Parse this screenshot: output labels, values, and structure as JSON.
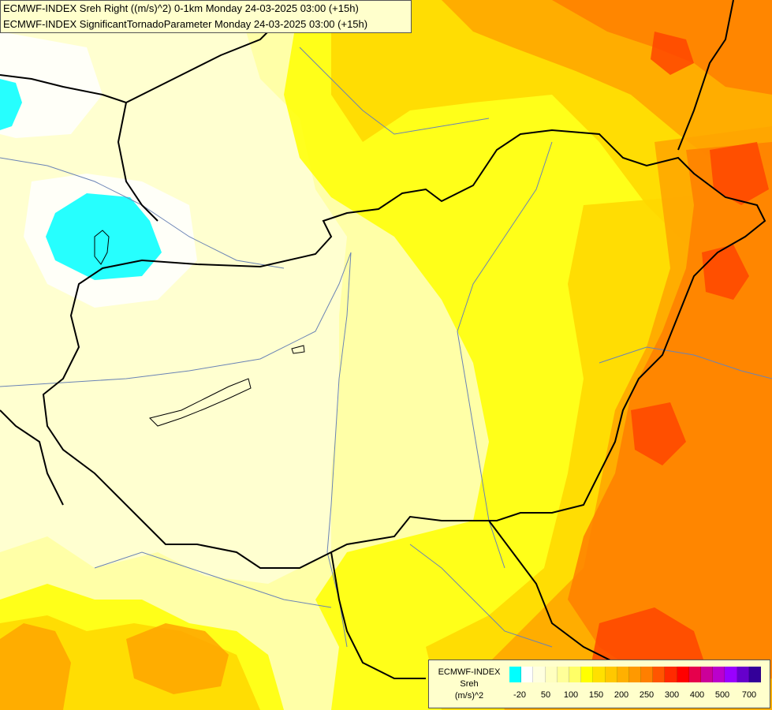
{
  "title_lines": [
    "ECMWF-INDEX Sreh Right ((m/s)^2) 0-1km Monday 24-03-2025 03:00 (+15h)",
    "ECMWF-INDEX SignificantTornadoParameter Monday 24-03-2025 03:00 (+15h)"
  ],
  "legend": {
    "caption_lines": [
      "ECMWF-INDEX",
      "Sreh",
      "(m/s)^2"
    ],
    "swatch_colors": [
      "#00ffff",
      "#ffffff",
      "#ffffe0",
      "#ffffc0",
      "#ffff99",
      "#ffff66",
      "#ffff00",
      "#ffe000",
      "#ffc800",
      "#ffb000",
      "#ff9900",
      "#ff7f00",
      "#ff5500",
      "#ff2a00",
      "#ff0000",
      "#e6004c",
      "#cc0099",
      "#bb00cc",
      "#9900ff",
      "#6600cc",
      "#330099"
    ],
    "ticks": [
      "-20",
      "50",
      "100",
      "150",
      "200",
      "250",
      "300",
      "400",
      "500",
      "700"
    ]
  },
  "field_colors": {
    "cyan": "#00ffff",
    "white": "#ffffff",
    "pale": "#ffffd0",
    "light_yellow": "#ffff99",
    "yellow": "#ffff00",
    "gold": "#ffd700",
    "orange": "#ffa500",
    "dark_orange": "#ff7f00",
    "red_orange": "#ff4500"
  },
  "border_color": "#000000",
  "river_color": "#6a83b5"
}
